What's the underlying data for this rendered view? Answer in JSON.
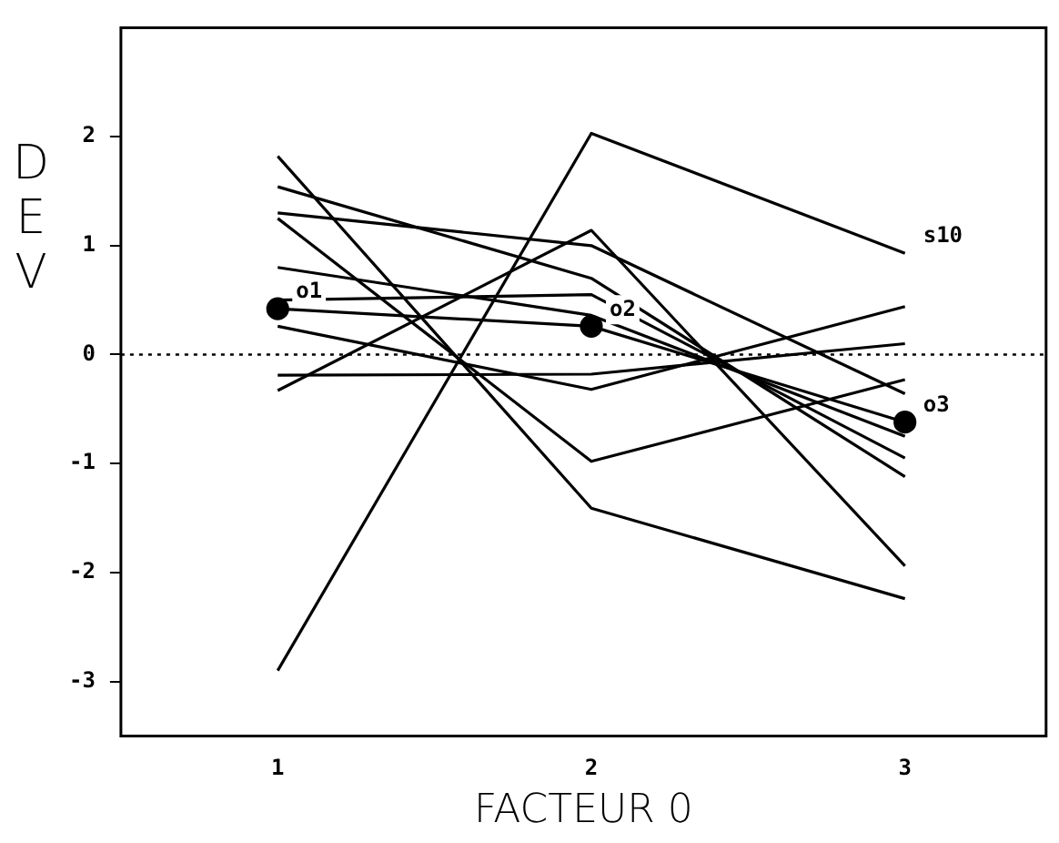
{
  "chart_data": {
    "type": "line",
    "xlabel": "FACTEUR 0",
    "ylabel": "DEV",
    "x": [
      1,
      2,
      3
    ],
    "xlim": [
      0.5,
      3.45
    ],
    "xticks": [
      1,
      2,
      3
    ],
    "ylim": [
      -3.5,
      3
    ],
    "yticks": [
      -3,
      -2,
      -1,
      0,
      1,
      2
    ],
    "grid": false,
    "legend": false,
    "marker": "none",
    "line_style": "solid",
    "series": [
      {
        "color": "#000000",
        "values": [
          -2.9,
          2.03,
          0.93
        ]
      },
      {
        "color": "#000000",
        "values": [
          1.82,
          -1.41,
          -2.24
        ]
      },
      {
        "color": "#000000",
        "values": [
          1.25,
          -0.98,
          -0.23
        ]
      },
      {
        "color": "#000000",
        "values": [
          1.54,
          0.7,
          -1.12
        ]
      },
      {
        "color": "#000000",
        "values": [
          1.3,
          1.0,
          -0.36
        ]
      },
      {
        "color": "#000000",
        "values": [
          -0.33,
          1.14,
          -1.94
        ]
      },
      {
        "color": "#000000",
        "values": [
          0.8,
          0.36,
          -0.75
        ]
      },
      {
        "color": "#000000",
        "values": [
          0.5,
          0.55,
          -0.95
        ]
      },
      {
        "color": "#000000",
        "values": [
          0.26,
          -0.32,
          0.44
        ]
      },
      {
        "color": "#000000",
        "values": [
          -0.19,
          -0.18,
          0.1
        ]
      },
      {
        "color": "#000000",
        "values": [
          0.42,
          0.26,
          -0.62
        ],
        "marker": "circle"
      }
    ],
    "ref_lines": [
      {
        "axis": "y",
        "value": 0,
        "line_style": "dotted",
        "color": "#000000"
      }
    ],
    "annotations": [
      {
        "text": "o1",
        "x": 1,
        "y": 0.42
      },
      {
        "text": "o2",
        "x": 2,
        "y": 0.26
      },
      {
        "text": "o3",
        "x": 3,
        "y": -0.62
      },
      {
        "text": "s10",
        "x": 3,
        "y": 0.93
      }
    ]
  }
}
